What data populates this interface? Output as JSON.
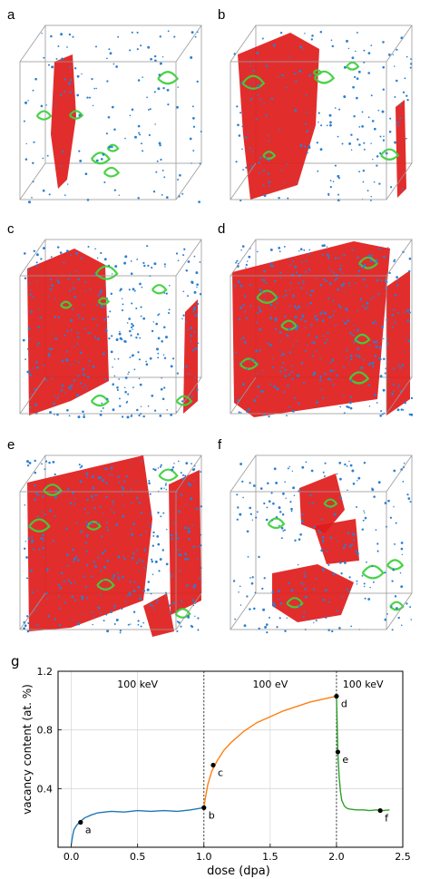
{
  "panels": [
    {
      "label": "a",
      "density": 0.35,
      "plane": "small-left"
    },
    {
      "label": "b",
      "density": 0.45,
      "plane": "large-left"
    },
    {
      "label": "c",
      "density": 0.8,
      "plane": "full-left"
    },
    {
      "label": "d",
      "density": 0.95,
      "plane": "full-both"
    },
    {
      "label": "e",
      "density": 0.85,
      "plane": "full-left-right"
    },
    {
      "label": "f",
      "density": 0.55,
      "plane": "center-cluster"
    }
  ],
  "colors": {
    "vacancy_blue": "#2b7fd0",
    "plane_red": "#e01b1b",
    "loop_green": "#3ed13e",
    "box_edge": "#9a9a9a",
    "line_blue": "#1f77b4",
    "line_orange": "#ff7f0e",
    "line_green": "#2ca02c"
  },
  "chart_data": {
    "type": "line",
    "panel_label": "g",
    "xlabel": "dose (dpa)",
    "ylabel": "vacancy content (at. %)",
    "xlim": [
      -0.1,
      2.5
    ],
    "ylim": [
      0.0,
      1.2
    ],
    "xticks": [
      "0.0",
      "0.5",
      "1.0",
      "1.5",
      "2.0",
      "2.5"
    ],
    "yticks": [
      "0.4",
      "0.8",
      "1.2"
    ],
    "grid": true,
    "regions": [
      {
        "label": "100 keV",
        "x_center": 0.5
      },
      {
        "label": "100 eV",
        "x_center": 1.5
      },
      {
        "label": "100 keV",
        "x_center": 2.2
      }
    ],
    "boundaries": [
      1.0,
      2.0
    ],
    "series": [
      {
        "color": "#1f77b4",
        "x": [
          0.0,
          0.01,
          0.02,
          0.04,
          0.06,
          0.1,
          0.15,
          0.2,
          0.3,
          0.4,
          0.5,
          0.6,
          0.7,
          0.8,
          0.9,
          1.0
        ],
        "y": [
          0.02,
          0.08,
          0.12,
          0.15,
          0.17,
          0.2,
          0.22,
          0.235,
          0.245,
          0.24,
          0.25,
          0.245,
          0.25,
          0.245,
          0.255,
          0.27
        ]
      },
      {
        "color": "#ff7f0e",
        "x": [
          1.0,
          1.01,
          1.03,
          1.06,
          1.1,
          1.15,
          1.2,
          1.3,
          1.4,
          1.5,
          1.6,
          1.7,
          1.8,
          1.9,
          2.0
        ],
        "y": [
          0.27,
          0.33,
          0.43,
          0.52,
          0.59,
          0.66,
          0.71,
          0.79,
          0.85,
          0.89,
          0.93,
          0.96,
          0.99,
          1.01,
          1.03
        ]
      },
      {
        "color": "#2ca02c",
        "x": [
          2.0,
          2.005,
          2.01,
          2.02,
          2.03,
          2.04,
          2.06,
          2.08,
          2.1,
          2.15,
          2.2,
          2.25,
          2.3,
          2.35,
          2.4
        ],
        "y": [
          1.03,
          0.85,
          0.65,
          0.48,
          0.38,
          0.32,
          0.28,
          0.265,
          0.26,
          0.255,
          0.255,
          0.25,
          0.255,
          0.25,
          0.255
        ]
      }
    ],
    "points": [
      {
        "label": "a",
        "x": 0.07,
        "y": 0.17,
        "anchor": "below-right"
      },
      {
        "label": "b",
        "x": 1.0,
        "y": 0.27,
        "anchor": "below-right"
      },
      {
        "label": "c",
        "x": 1.07,
        "y": 0.56,
        "anchor": "below-right"
      },
      {
        "label": "d",
        "x": 2.0,
        "y": 1.03,
        "anchor": "below-right"
      },
      {
        "label": "e",
        "x": 2.01,
        "y": 0.65,
        "anchor": "below-right"
      },
      {
        "label": "f",
        "x": 2.33,
        "y": 0.25,
        "anchor": "below-right"
      }
    ]
  }
}
